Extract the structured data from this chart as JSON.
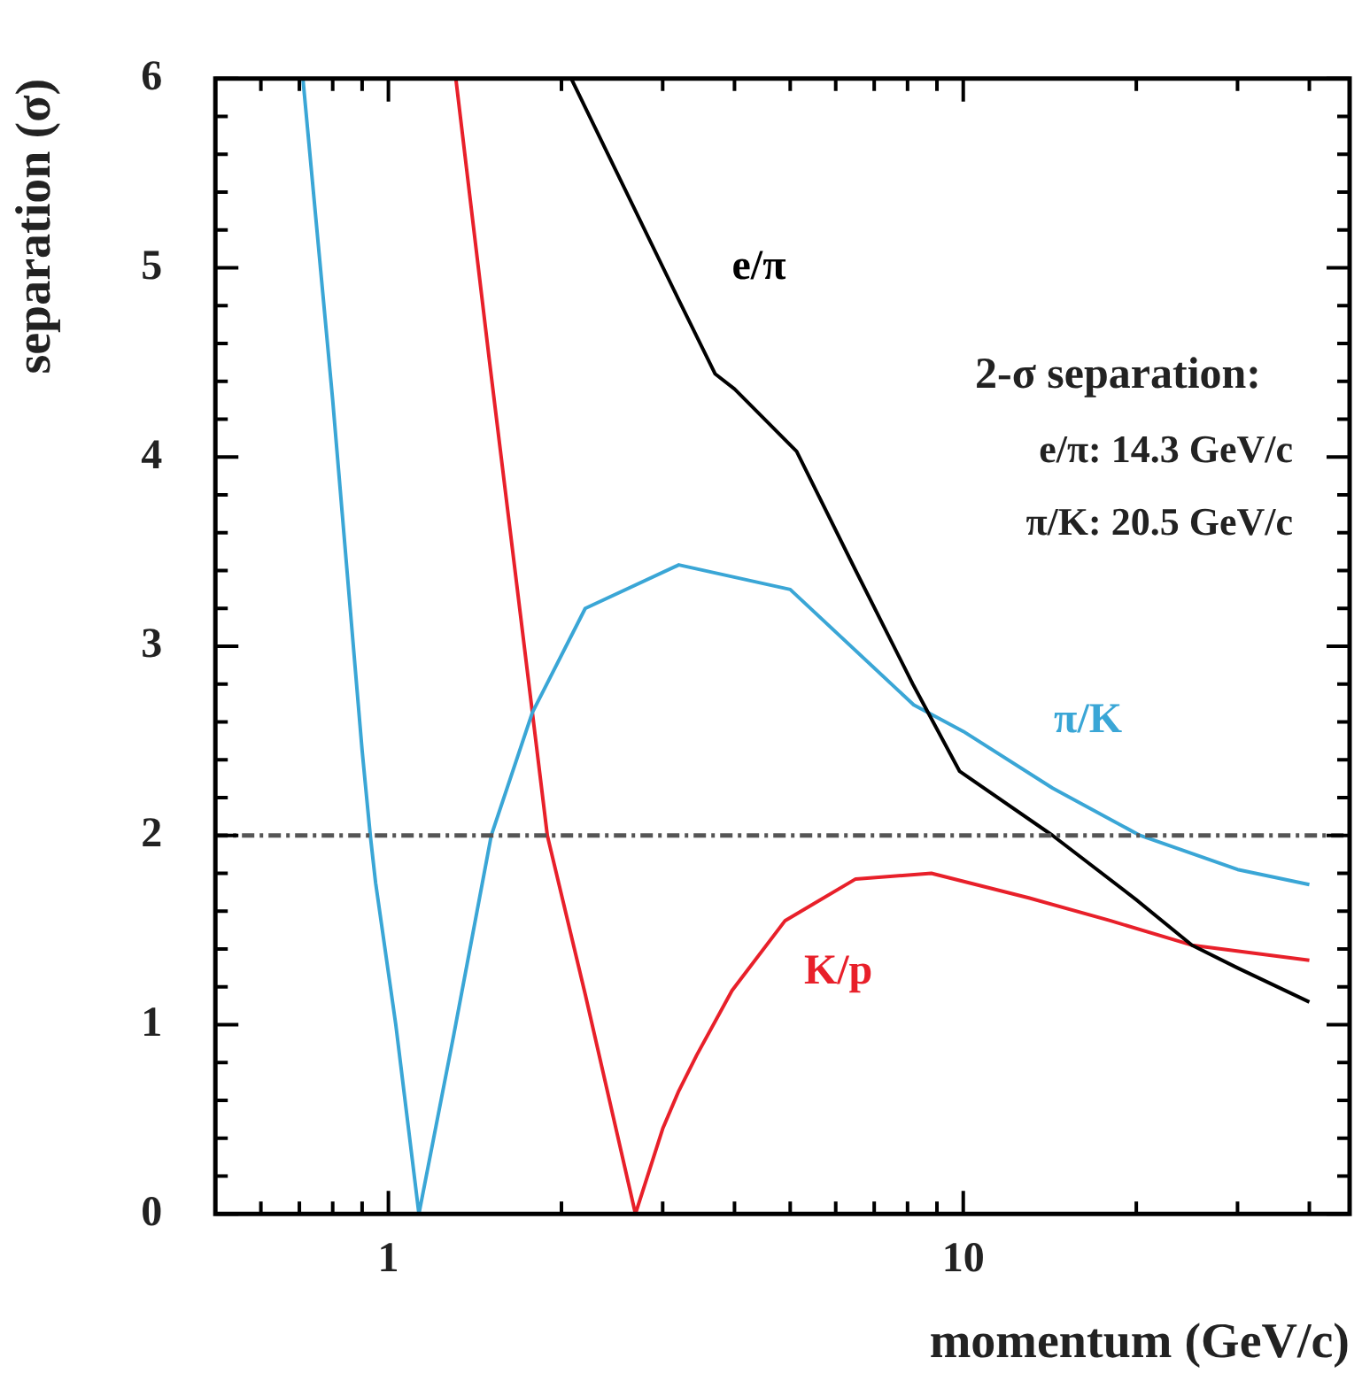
{
  "chart_data": {
    "type": "line",
    "xlabel": "momentum (GeV/c)",
    "ylabel": "separation (σ)",
    "annotations": [
      "2-σ separation:",
      "e/π: 14.3 GeV/c",
      "π/K: 20.5 GeV/c"
    ],
    "log": "x",
    "grid": false,
    "legend": false,
    "marker": "none",
    "line_style": "solid",
    "xlim": [
      0.5,
      47
    ],
    "xticks": [
      {
        "value": 0.6,
        "label": null
      },
      {
        "value": 0.7,
        "label": null
      },
      {
        "value": 0.8,
        "label": null
      },
      {
        "value": 0.9,
        "label": null
      },
      1,
      {
        "value": 2,
        "label": null
      },
      {
        "value": 3,
        "label": null
      },
      {
        "value": 4,
        "label": null
      },
      {
        "value": 5,
        "label": null
      },
      {
        "value": 6,
        "label": null
      },
      {
        "value": 7,
        "label": null
      },
      {
        "value": 8,
        "label": null
      },
      {
        "value": 9,
        "label": null
      },
      10,
      {
        "value": 20,
        "label": null
      },
      {
        "value": 30,
        "label": null
      },
      {
        "value": 40,
        "label": null
      }
    ],
    "ylim": [
      0,
      6
    ],
    "yticks": [
      0,
      {
        "value": 0.2,
        "label": null
      },
      {
        "value": 0.4,
        "label": null
      },
      {
        "value": 0.6,
        "label": null
      },
      {
        "value": 0.8,
        "label": null
      },
      1,
      {
        "value": 1.2,
        "label": null
      },
      {
        "value": 1.4,
        "label": null
      },
      {
        "value": 1.6,
        "label": null
      },
      {
        "value": 1.8,
        "label": null
      },
      2,
      {
        "value": 2.2,
        "label": null
      },
      {
        "value": 2.4,
        "label": null
      },
      {
        "value": 2.6,
        "label": null
      },
      {
        "value": 2.8,
        "label": null
      },
      3,
      {
        "value": 3.2,
        "label": null
      },
      {
        "value": 3.4,
        "label": null
      },
      {
        "value": 3.6,
        "label": null
      },
      {
        "value": 3.8,
        "label": null
      },
      4,
      {
        "value": 4.2,
        "label": null
      },
      {
        "value": 4.4,
        "label": null
      },
      {
        "value": 4.6,
        "label": null
      },
      {
        "value": 4.8,
        "label": null
      },
      5,
      {
        "value": 5.2,
        "label": null
      },
      {
        "value": 5.4,
        "label": null
      },
      {
        "value": 5.6,
        "label": null
      },
      {
        "value": 5.8,
        "label": null
      },
      6
    ],
    "ref_lines": [
      {
        "axis": "y",
        "value": 2,
        "color": "#555555",
        "line_style": "dashed"
      }
    ],
    "series": [
      {
        "name": "e/π",
        "color": "#000000",
        "x": [
          2.08,
          2.5,
          3.2,
          3.7,
          4,
          5.13,
          6.5,
          8.17,
          9.85,
          14.3,
          20,
          25,
          30,
          40
        ],
        "values": [
          6,
          5.5,
          4.83,
          4.44,
          4.36,
          4.03,
          3.4,
          2.8,
          2.34,
          2,
          1.66,
          1.42,
          1.3,
          1.12
        ]
      },
      {
        "name": "π/K",
        "color": "#3aa6d6",
        "x": [
          0.71,
          0.8,
          0.9,
          0.93,
          0.95,
          1.03,
          1.13,
          1.3,
          1.51,
          1.78,
          2.2,
          3.2,
          5,
          8.2,
          10,
          14.3,
          20.3,
          30,
          40
        ],
        "values": [
          6,
          4.3,
          2.45,
          2,
          1.75,
          1,
          0,
          0.95,
          2,
          2.65,
          3.2,
          3.43,
          3.3,
          2.69,
          2.55,
          2.25,
          2,
          1.82,
          1.74
        ]
      },
      {
        "name": "K/p",
        "color": "#e8202a",
        "x": [
          1.31,
          1.5,
          1.78,
          1.89,
          2.2,
          2.69,
          3,
          3.2,
          3.44,
          3.96,
          4.9,
          6.5,
          8.8,
          13,
          18,
          25,
          40
        ],
        "values": [
          6,
          4.5,
          2.65,
          2,
          1.16,
          0,
          0.45,
          0.65,
          0.84,
          1.18,
          1.55,
          1.77,
          1.8,
          1.67,
          1.55,
          1.42,
          1.34
        ]
      }
    ]
  }
}
